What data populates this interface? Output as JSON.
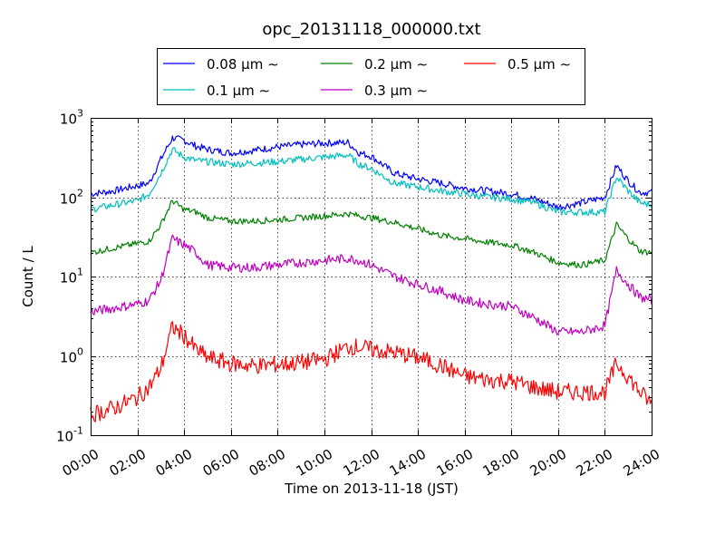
{
  "chart_data": {
    "type": "line",
    "title": "opc_20131118_000000.txt",
    "xlabel": "Time on 2013-11-18 (JST)",
    "ylabel": "Count / L",
    "yscale": "log",
    "ylim": [
      0.1,
      1000
    ],
    "xlim": [
      "2013-11-18 00:00",
      "2013-11-19 00:00"
    ],
    "grid": true,
    "legend_position": "top-center",
    "x_ticks": [
      "00:00",
      "02:00",
      "04:00",
      "06:00",
      "08:00",
      "10:00",
      "12:00",
      "14:00",
      "16:00",
      "18:00",
      "20:00",
      "22:00",
      "24:00"
    ],
    "y_ticks": [
      {
        "base": "10",
        "exp": "-1"
      },
      {
        "base": "10",
        "exp": "0"
      },
      {
        "base": "10",
        "exp": "1"
      },
      {
        "base": "10",
        "exp": "2"
      },
      {
        "base": "10",
        "exp": "3"
      }
    ],
    "x": [
      "00:00",
      "01:00",
      "02:00",
      "02:30",
      "03:00",
      "03:30",
      "04:00",
      "04:30",
      "05:00",
      "06:00",
      "07:00",
      "08:00",
      "09:00",
      "10:00",
      "11:00",
      "11:30",
      "12:00",
      "13:00",
      "14:00",
      "15:00",
      "16:00",
      "17:00",
      "18:00",
      "19:00",
      "20:00",
      "21:00",
      "22:00",
      "22:30",
      "23:00",
      "23:30",
      "24:00"
    ],
    "series": [
      {
        "name": "0.08 µm ∼",
        "color": "#0000ff",
        "values": [
          110,
          120,
          140,
          150,
          300,
          560,
          520,
          440,
          400,
          360,
          390,
          430,
          460,
          480,
          490,
          360,
          330,
          200,
          170,
          150,
          130,
          120,
          110,
          95,
          75,
          85,
          100,
          250,
          160,
          115,
          115
        ]
      },
      {
        "name": "0.1 µm ∼",
        "color": "#00bfbf",
        "values": [
          70,
          80,
          90,
          110,
          200,
          400,
          320,
          290,
          280,
          260,
          270,
          280,
          300,
          320,
          340,
          260,
          230,
          150,
          135,
          120,
          110,
          100,
          95,
          85,
          65,
          65,
          65,
          180,
          120,
          85,
          80
        ]
      },
      {
        "name": "0.2 µm ∼",
        "color": "#008000",
        "values": [
          20,
          23,
          26,
          28,
          45,
          90,
          70,
          65,
          55,
          50,
          50,
          52,
          55,
          58,
          62,
          58,
          55,
          48,
          40,
          33,
          30,
          27,
          25,
          20,
          15,
          14,
          16,
          45,
          30,
          21,
          20
        ]
      },
      {
        "name": "0.3 µm ∼",
        "color": "#bf00bf",
        "values": [
          3.6,
          4.0,
          4.5,
          5.0,
          9,
          30,
          25,
          20,
          14,
          13,
          13,
          14,
          15,
          16,
          17,
          16,
          14,
          10,
          8,
          6.5,
          5.0,
          4.5,
          4.2,
          3.0,
          2.0,
          2.0,
          2.4,
          12,
          8,
          5.5,
          5.0
        ]
      },
      {
        "name": "0.5 µm ∼",
        "color": "#ff0000",
        "values": [
          0.18,
          0.22,
          0.3,
          0.4,
          0.7,
          2.3,
          1.8,
          1.2,
          0.95,
          0.8,
          0.75,
          0.78,
          0.82,
          0.9,
          1.3,
          1.3,
          1.2,
          1.1,
          0.95,
          0.75,
          0.55,
          0.5,
          0.48,
          0.4,
          0.35,
          0.35,
          0.35,
          0.8,
          0.55,
          0.35,
          0.25
        ]
      }
    ]
  }
}
